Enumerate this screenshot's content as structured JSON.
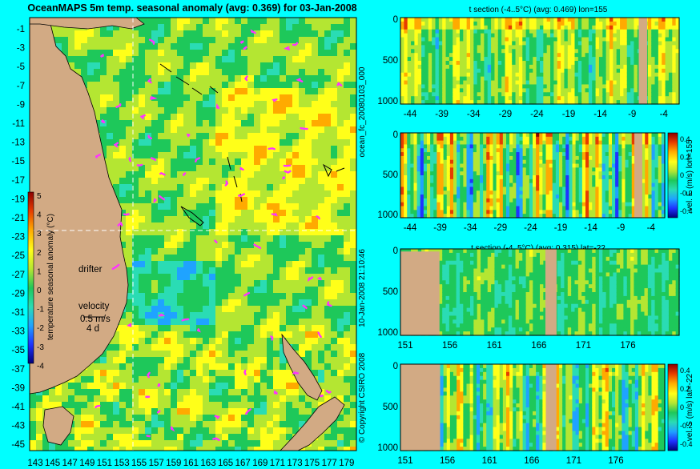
{
  "colors": {
    "background": "#00ffff",
    "land": "#d2aa84",
    "drifter": "#ff33ff",
    "palette": [
      "#00007a",
      "#1f33ff",
      "#1fa3ff",
      "#2adcb4",
      "#1ec85a",
      "#b4e632",
      "#ffff19",
      "#ffaa00",
      "#e63c00",
      "#8c0000"
    ]
  },
  "map": {
    "title": "OceanMAPS 5m temp. seasonal anomaly (avg: 0.369) for 03-Jan-2008",
    "colorbar_label": "temperature seasonal anomaly (°C)",
    "colorbar_ticks": [
      "5",
      "4",
      "3",
      "2",
      "1",
      "0",
      "-1",
      "-2",
      "-3",
      "-4"
    ],
    "drifter_label": "drifter",
    "velocity_label": "velocity",
    "velocity_scale": "0.5 m/s",
    "velocity_time": "4 d",
    "lat_ticks": [
      "-1",
      "-3",
      "-5",
      "-7",
      "-9",
      "-11",
      "-13",
      "-15",
      "-17",
      "-19",
      "-21",
      "-23",
      "-25",
      "-27",
      "-29",
      "-31",
      "-33",
      "-35",
      "-37",
      "-39",
      "-41",
      "-43",
      "-45"
    ],
    "lon_ticks": [
      "143",
      "145",
      "147",
      "149",
      "151",
      "153",
      "155",
      "157",
      "159",
      "161",
      "163",
      "165",
      "167",
      "169",
      "171",
      "173",
      "175",
      "177",
      "179"
    ],
    "section_lon": 155,
    "section_lat": -22
  },
  "side_text": {
    "run_id": "ocean_fc_20080103_000",
    "timestamp": "10-Jan-2008 21:10:46",
    "copyright": "© Copyright CSIRO 2008"
  },
  "panels": {
    "p1": {
      "title": "t section (-4..5°C) (avg: 0.469) lon=155"
    },
    "p2": {
      "ylabel": "vel. E (m/s) lon=155"
    },
    "p3": {
      "title": "t section (-4..5°C) (avg: 0.315) lat=-22"
    },
    "p4": {
      "ylabel": "vel. S (m/s) lat=-22"
    },
    "depth_ticks": [
      "0",
      "500",
      "1000"
    ],
    "lat_ticks": [
      "-44",
      "-39",
      "-34",
      "-29",
      "-24",
      "-19",
      "-14",
      "-9",
      "-4"
    ],
    "lon_ticks": [
      "151",
      "156",
      "161",
      "166",
      "171",
      "176"
    ],
    "vel_ticks": [
      "0.4",
      "0.2",
      "0",
      "-0.2",
      "-0.4"
    ]
  },
  "chart_data": [
    {
      "type": "heatmap",
      "title": "OceanMAPS 5m temp. seasonal anomaly (avg: 0.369) for 03-Jan-2008",
      "xlabel": "",
      "ylabel": "",
      "x_ticks": [
        143,
        145,
        147,
        149,
        151,
        153,
        155,
        157,
        159,
        161,
        163,
        165,
        167,
        169,
        171,
        173,
        175,
        177,
        179
      ],
      "y_ticks": [
        -1,
        -3,
        -5,
        -7,
        -9,
        -11,
        -13,
        -15,
        -17,
        -19,
        -21,
        -23,
        -25,
        -27,
        -29,
        -31,
        -33,
        -35,
        -37,
        -39,
        -41,
        -43,
        -45
      ],
      "xlim": [
        143,
        180
      ],
      "ylim": [
        -45,
        0
      ],
      "colorbar": {
        "label": "temperature seasonal anomaly (°C)",
        "range": [
          -4,
          5
        ]
      },
      "average": 0.369
    },
    {
      "type": "heatmap",
      "title": "t section (-4..5°C) (avg: 0.469) lon=155",
      "x_ticks": [
        -44,
        -39,
        -34,
        -29,
        -24,
        -19,
        -14,
        -9,
        -4
      ],
      "y_ticks": [
        0,
        500,
        1000
      ],
      "xlim": [
        -45,
        0
      ],
      "ylim": [
        1000,
        0
      ],
      "value_range": [
        -4,
        5
      ],
      "average": 0.469
    },
    {
      "type": "heatmap",
      "ylabel": "vel. E (m/s) lon=155",
      "x_ticks": [
        -44,
        -39,
        -34,
        -29,
        -24,
        -19,
        -14,
        -9,
        -4
      ],
      "y_ticks": [
        0,
        500,
        1000
      ],
      "xlim": [
        -45,
        0
      ],
      "ylim": [
        1000,
        0
      ],
      "colorbar": {
        "label": "vel. E (m/s) lon=155",
        "range": [
          -0.4,
          0.4
        ]
      }
    },
    {
      "type": "heatmap",
      "title": "t section (-4..5°C) (avg: 0.315) lat=-22",
      "x_ticks": [
        151,
        156,
        161,
        166,
        171,
        176
      ],
      "y_ticks": [
        0,
        500,
        1000
      ],
      "xlim": [
        149,
        180
      ],
      "ylim": [
        1000,
        0
      ],
      "value_range": [
        -4,
        5
      ],
      "average": 0.315
    },
    {
      "type": "heatmap",
      "ylabel": "vel. S (m/s) lat=-22",
      "x_ticks": [
        151,
        156,
        161,
        166,
        171,
        176
      ],
      "y_ticks": [
        0,
        500,
        1000
      ],
      "xlim": [
        149,
        180
      ],
      "ylim": [
        1000,
        0
      ],
      "colorbar": {
        "label": "vel. S (m/s) lat=-22",
        "range": [
          -0.4,
          0.4
        ]
      }
    }
  ]
}
